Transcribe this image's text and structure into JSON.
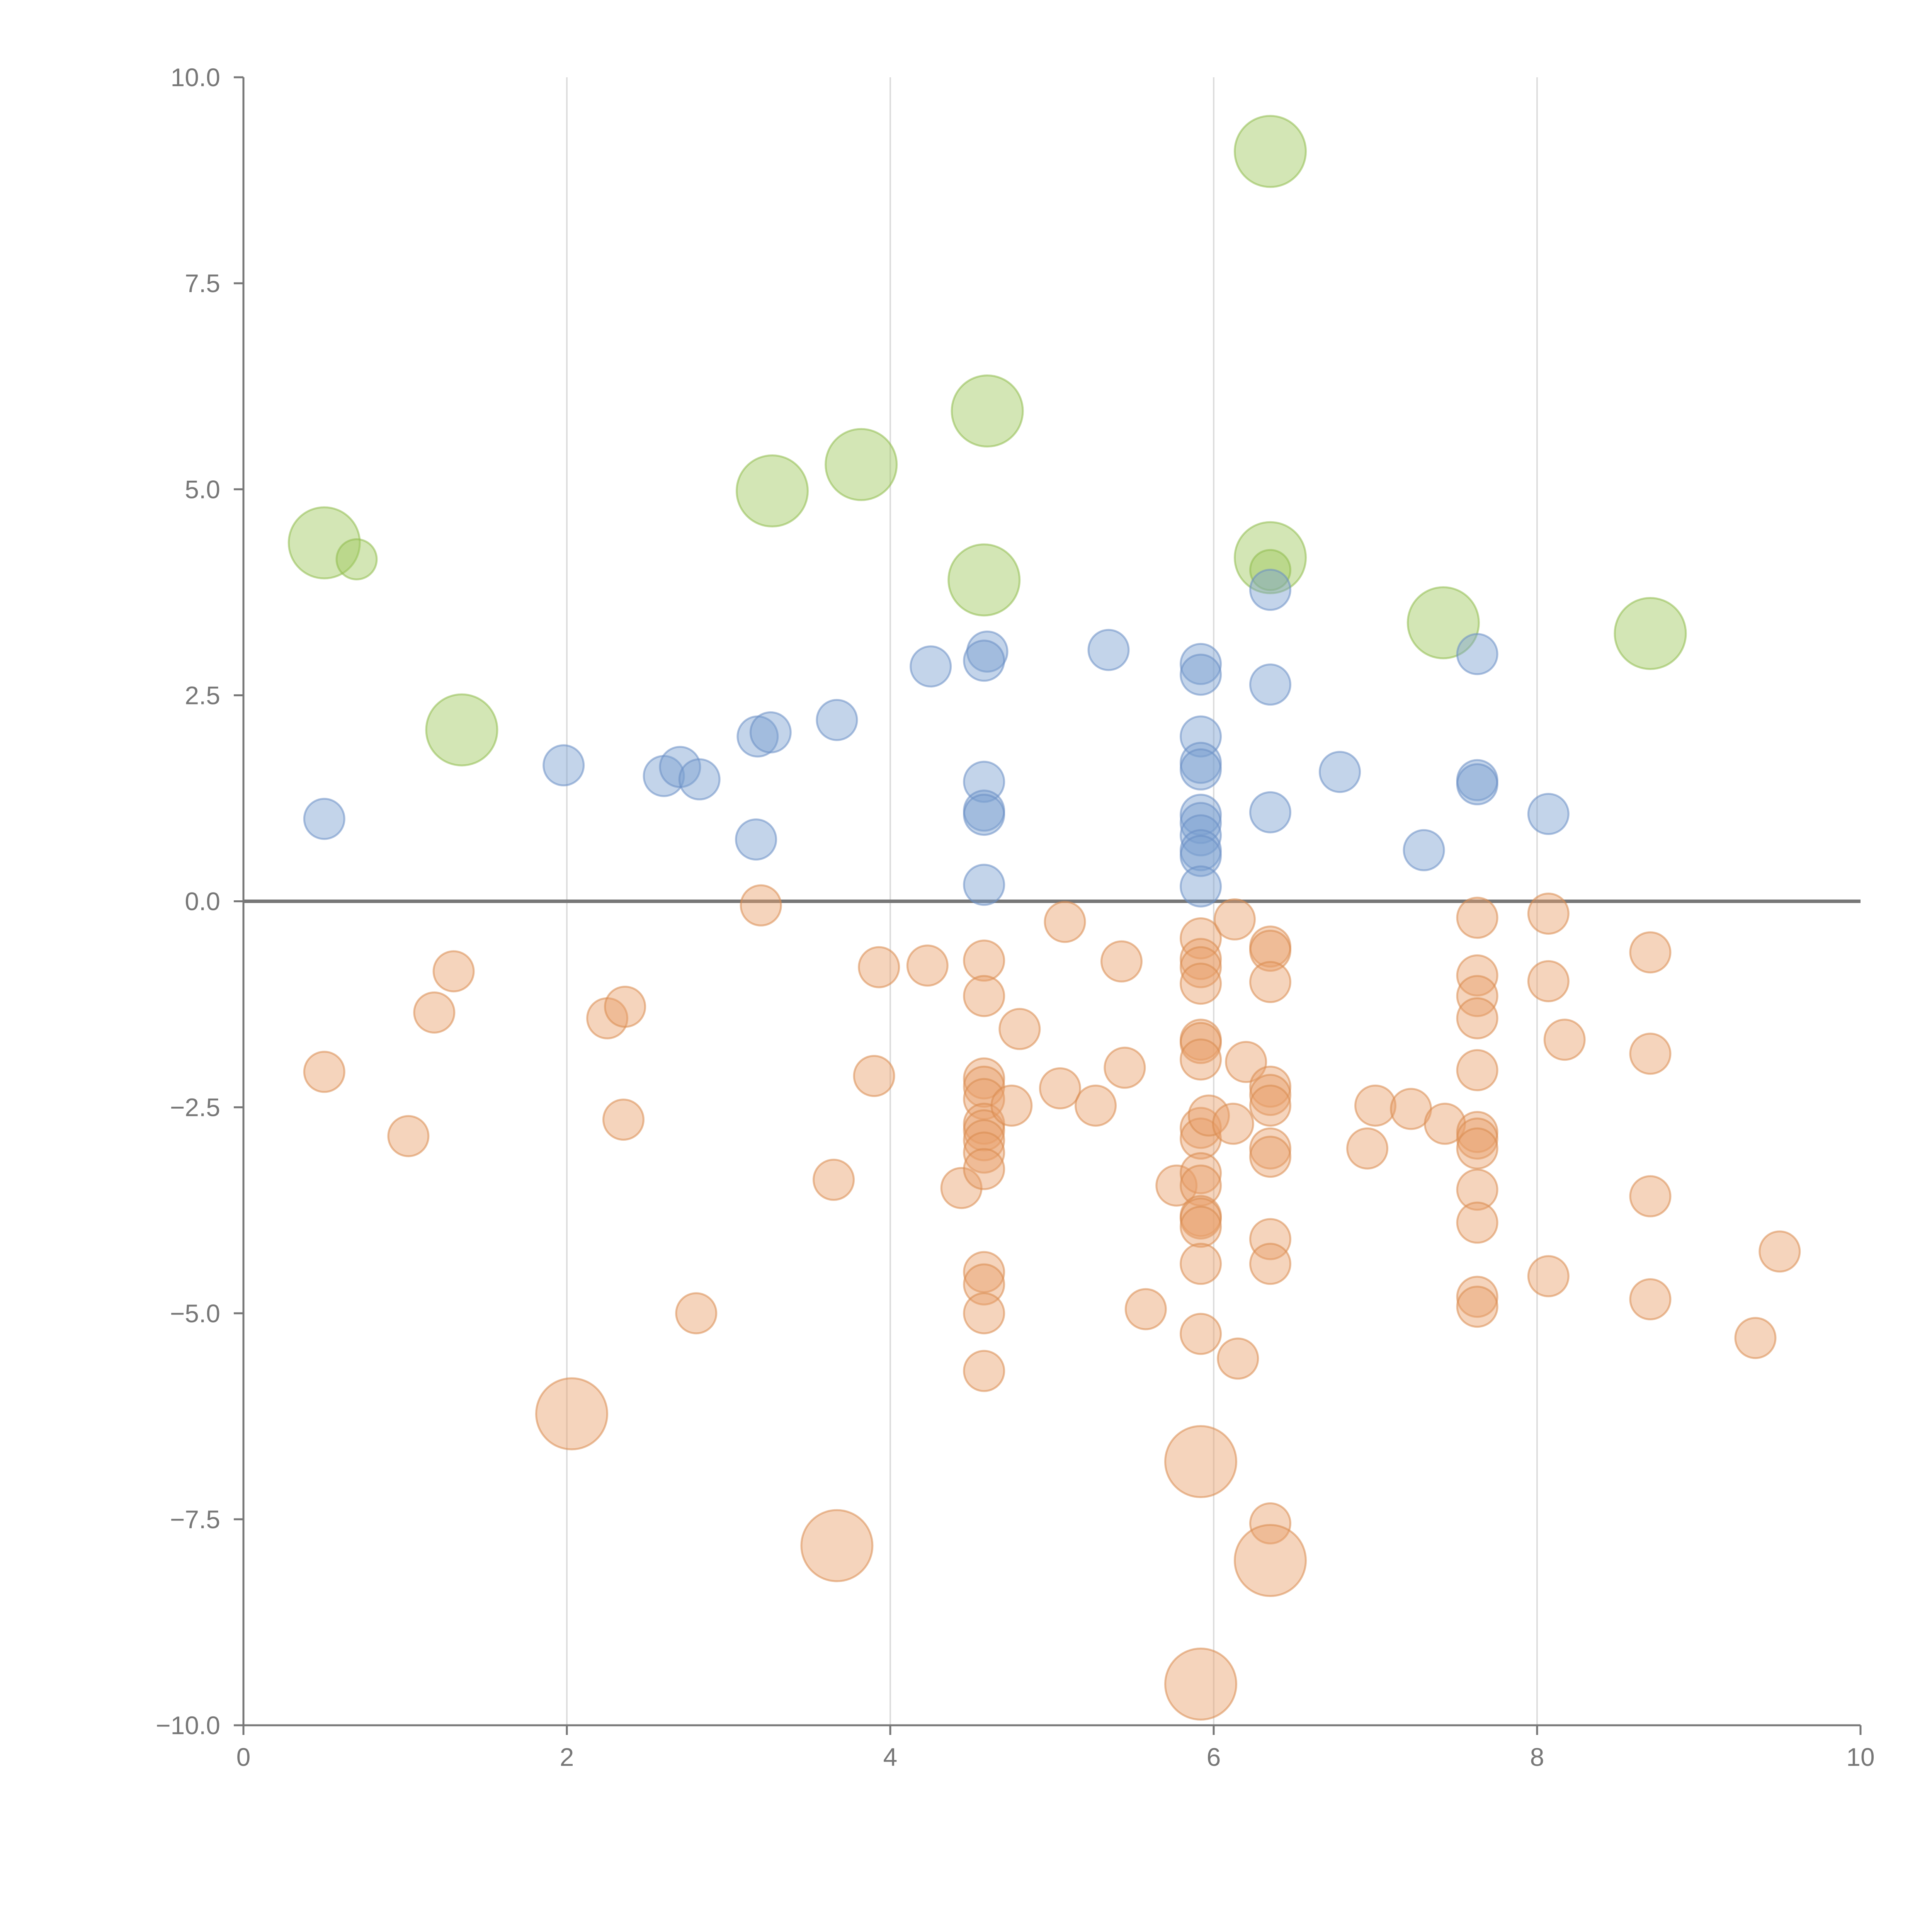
{
  "chart_data": {
    "type": "scatter",
    "title": "",
    "xlabel": "",
    "ylabel": "",
    "xlim": [
      0,
      10
    ],
    "ylim": [
      -10,
      10
    ],
    "x_ticks": [
      {
        "value": 0,
        "label": "0"
      },
      {
        "value": 2,
        "label": "2"
      },
      {
        "value": 4,
        "label": "4"
      },
      {
        "value": 6,
        "label": "6"
      },
      {
        "value": 8,
        "label": "8"
      },
      {
        "value": 10,
        "label": "10"
      }
    ],
    "y_ticks": [
      {
        "value": 10,
        "label": "10.0"
      },
      {
        "value": 7.5,
        "label": "7.5"
      },
      {
        "value": 5,
        "label": "5.0"
      },
      {
        "value": 2.5,
        "label": "2.5"
      },
      {
        "value": 0,
        "label": "0.0"
      },
      {
        "value": -2.5,
        "label": "−2.5"
      },
      {
        "value": -5,
        "label": "−5.0"
      },
      {
        "value": -7.5,
        "label": "−7.5"
      },
      {
        "value": -10,
        "label": "−10.0"
      }
    ],
    "grid": "vertical",
    "series": [
      {
        "name": "green",
        "color": "#9dc75b",
        "stroke": "#8fbb4c",
        "points": [
          [
            0.5,
            4.35,
            3
          ],
          [
            0.7,
            4.15,
            1
          ],
          [
            1.35,
            2.08,
            3
          ],
          [
            3.27,
            4.98,
            3
          ],
          [
            3.82,
            5.3,
            3
          ],
          [
            4.6,
            5.95,
            3
          ],
          [
            4.58,
            3.9,
            3
          ],
          [
            6.35,
            9.1,
            3
          ],
          [
            6.35,
            4.17,
            3
          ],
          [
            6.35,
            4.02,
            1
          ],
          [
            7.42,
            3.38,
            3
          ],
          [
            8.7,
            3.25,
            3
          ]
        ]
      },
      {
        "name": "blue",
        "color": "#7b9fd1",
        "stroke": "#6a8ec4",
        "points": [
          [
            0.5,
            1.0,
            1
          ],
          [
            1.98,
            1.65,
            1
          ],
          [
            2.6,
            1.52,
            1
          ],
          [
            2.7,
            1.63,
            1
          ],
          [
            2.82,
            1.48,
            1
          ],
          [
            3.18,
            2.0,
            1
          ],
          [
            3.26,
            2.05,
            1
          ],
          [
            3.17,
            0.75,
            1
          ],
          [
            3.67,
            2.2,
            1
          ],
          [
            4.25,
            2.85,
            1
          ],
          [
            4.6,
            3.03,
            1
          ],
          [
            4.58,
            2.92,
            1
          ],
          [
            4.58,
            1.45,
            1
          ],
          [
            4.58,
            1.1,
            1
          ],
          [
            4.58,
            1.05,
            1
          ],
          [
            4.58,
            0.2,
            1
          ],
          [
            5.35,
            3.05,
            1
          ],
          [
            5.92,
            2.88,
            1
          ],
          [
            5.92,
            2.75,
            1
          ],
          [
            5.92,
            2.0,
            1
          ],
          [
            5.92,
            1.68,
            1
          ],
          [
            5.92,
            1.6,
            1
          ],
          [
            5.92,
            1.05,
            1
          ],
          [
            5.92,
            0.95,
            1
          ],
          [
            5.92,
            0.8,
            1
          ],
          [
            5.92,
            0.62,
            1
          ],
          [
            5.92,
            0.55,
            1
          ],
          [
            5.92,
            0.18,
            1
          ],
          [
            6.35,
            3.78,
            1
          ],
          [
            6.35,
            2.63,
            1
          ],
          [
            6.35,
            1.08,
            1
          ],
          [
            6.78,
            1.57,
            1
          ],
          [
            7.3,
            0.62,
            1
          ],
          [
            7.63,
            3.0,
            1
          ],
          [
            7.63,
            1.47,
            1
          ],
          [
            7.63,
            1.42,
            1
          ],
          [
            8.07,
            1.06,
            1
          ]
        ]
      },
      {
        "name": "orange",
        "color": "#e8a06a",
        "stroke": "#d98a4e",
        "points": [
          [
            0.5,
            -2.07,
            1
          ],
          [
            1.02,
            -2.85,
            1
          ],
          [
            1.18,
            -1.35,
            1
          ],
          [
            1.3,
            -0.85,
            1
          ],
          [
            2.25,
            -1.42,
            1
          ],
          [
            2.36,
            -1.28,
            1
          ],
          [
            2.35,
            -2.65,
            1
          ],
          [
            2.8,
            -5.0,
            1
          ],
          [
            3.2,
            -0.05,
            1
          ],
          [
            3.65,
            -3.38,
            1
          ],
          [
            3.9,
            -2.12,
            1
          ],
          [
            3.93,
            -0.8,
            1
          ],
          [
            4.23,
            -0.78,
            1
          ],
          [
            4.44,
            -3.48,
            1
          ],
          [
            4.58,
            -0.72,
            1
          ],
          [
            4.58,
            -1.15,
            1
          ],
          [
            4.58,
            -2.15,
            1
          ],
          [
            4.58,
            -2.25,
            1
          ],
          [
            4.58,
            -2.4,
            1
          ],
          [
            4.58,
            -2.7,
            1
          ],
          [
            4.58,
            -2.78,
            1
          ],
          [
            4.58,
            -2.9,
            1
          ],
          [
            4.58,
            -3.05,
            1
          ],
          [
            4.58,
            -3.25,
            1
          ],
          [
            4.58,
            -4.5,
            1
          ],
          [
            4.58,
            -4.65,
            1
          ],
          [
            4.58,
            -5.0,
            1
          ],
          [
            4.58,
            -5.7,
            1
          ],
          [
            4.75,
            -2.48,
            1
          ],
          [
            4.8,
            -1.55,
            1
          ],
          [
            5.05,
            -2.27,
            1
          ],
          [
            5.08,
            -0.25,
            1
          ],
          [
            5.27,
            -2.48,
            1
          ],
          [
            5.43,
            -0.73,
            1
          ],
          [
            5.45,
            -2.02,
            1
          ],
          [
            5.58,
            -4.95,
            1
          ],
          [
            5.77,
            -3.45,
            1
          ],
          [
            5.92,
            -0.45,
            1
          ],
          [
            5.92,
            -0.7,
            1
          ],
          [
            5.92,
            -0.8,
            1
          ],
          [
            5.92,
            -1.0,
            1
          ],
          [
            5.92,
            -1.68,
            1
          ],
          [
            5.92,
            -1.72,
            1
          ],
          [
            5.92,
            -1.92,
            1
          ],
          [
            5.92,
            -2.75,
            1
          ],
          [
            5.92,
            -2.88,
            1
          ],
          [
            5.92,
            -3.3,
            1
          ],
          [
            5.92,
            -3.45,
            1
          ],
          [
            5.92,
            -3.82,
            1
          ],
          [
            5.92,
            -3.85,
            1
          ],
          [
            5.92,
            -3.95,
            1
          ],
          [
            5.92,
            -4.4,
            1
          ],
          [
            5.92,
            -5.25,
            1
          ],
          [
            5.92,
            -6.8,
            3
          ],
          [
            5.92,
            -9.5,
            3
          ],
          [
            5.97,
            -2.6,
            1
          ],
          [
            6.13,
            -0.22,
            1
          ],
          [
            6.12,
            -2.7,
            1
          ],
          [
            6.15,
            -5.55,
            1
          ],
          [
            6.2,
            -1.95,
            1
          ],
          [
            6.35,
            -0.55,
            1
          ],
          [
            6.35,
            -0.6,
            1
          ],
          [
            6.35,
            -0.98,
            1
          ],
          [
            6.35,
            -2.25,
            1
          ],
          [
            6.35,
            -2.35,
            1
          ],
          [
            6.35,
            -2.48,
            1
          ],
          [
            6.35,
            -3.0,
            1
          ],
          [
            6.35,
            -3.1,
            1
          ],
          [
            6.35,
            -4.1,
            1
          ],
          [
            6.35,
            -4.4,
            1
          ],
          [
            6.35,
            -7.55,
            1
          ],
          [
            6.35,
            -8.0,
            3
          ],
          [
            6.95,
            -3.0,
            1
          ],
          [
            7.0,
            -2.48,
            1
          ],
          [
            7.22,
            -2.52,
            1
          ],
          [
            7.43,
            -2.7,
            1
          ],
          [
            7.63,
            -0.2,
            1
          ],
          [
            7.63,
            -0.9,
            1
          ],
          [
            7.63,
            -1.15,
            1
          ],
          [
            7.63,
            -1.42,
            1
          ],
          [
            7.63,
            -2.05,
            1
          ],
          [
            7.63,
            -2.8,
            1
          ],
          [
            7.63,
            -2.88,
            1
          ],
          [
            7.63,
            -3.0,
            1
          ],
          [
            7.63,
            -3.5,
            1
          ],
          [
            7.63,
            -3.9,
            1
          ],
          [
            7.63,
            -4.8,
            1
          ],
          [
            7.63,
            -4.92,
            1
          ],
          [
            8.07,
            -0.15,
            1
          ],
          [
            8.07,
            -0.97,
            1
          ],
          [
            8.07,
            -4.55,
            1
          ],
          [
            8.17,
            -1.68,
            1
          ],
          [
            8.7,
            -0.62,
            1
          ],
          [
            8.7,
            -1.85,
            1
          ],
          [
            8.7,
            -3.58,
            1
          ],
          [
            8.7,
            -4.83,
            1
          ],
          [
            9.35,
            -5.3,
            1
          ],
          [
            9.5,
            -4.25,
            1
          ],
          [
            2.03,
            -6.22,
            3
          ],
          [
            3.67,
            -7.82,
            3
          ]
        ]
      }
    ]
  }
}
